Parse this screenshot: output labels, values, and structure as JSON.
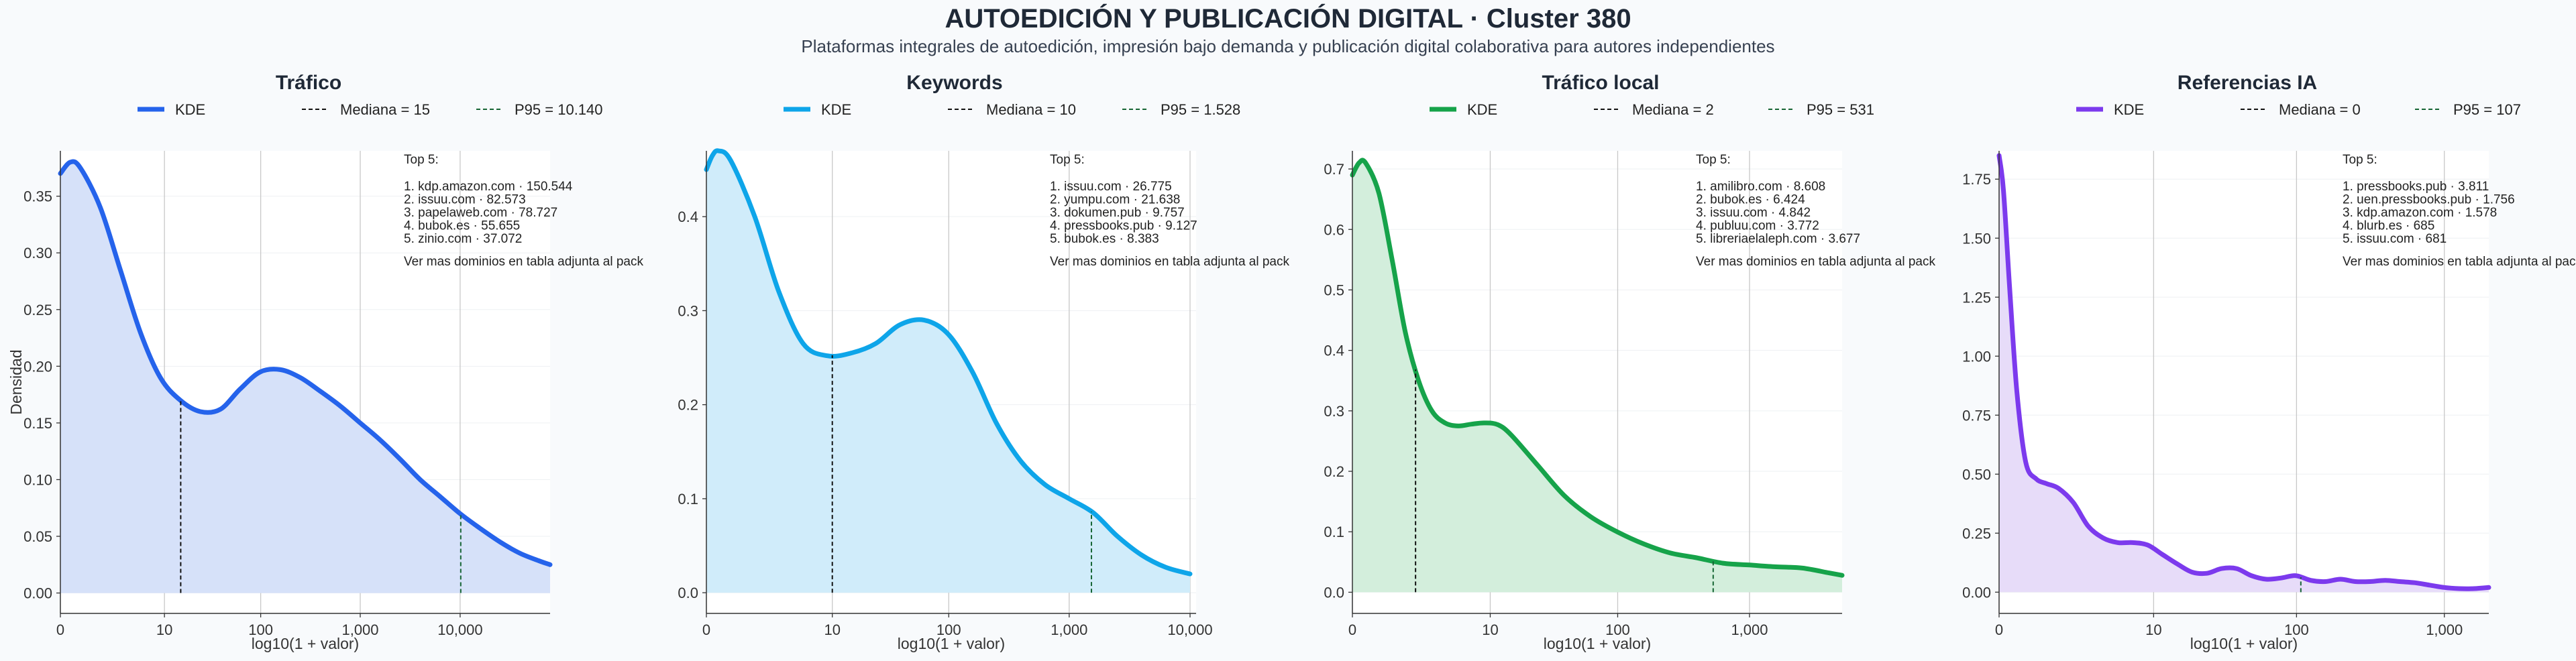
{
  "title": "AUTOEDICIÓN Y PUBLICACIÓN DIGITAL · Cluster 380",
  "subtitle": "Plataformas integrales de autoedición, impresión bajo demanda y publicación digital colaborativa para autores independientes",
  "chart_data": [
    {
      "type": "area",
      "panel_title": "Tráfico",
      "color": "#2563eb",
      "fill": "#d6e1f9",
      "legend": [
        "KDE",
        "Mediana = 15",
        "P95 = 10.140"
      ],
      "xlabel": "log10(1 + valor)",
      "ylabel": "Densidad",
      "x_scale": "log10(1+x)",
      "xlim": [
        0,
        4.9
      ],
      "ylim": [
        -0.018,
        0.39
      ],
      "x_ticks": [
        0,
        10,
        100,
        1000,
        10000
      ],
      "x_tick_labels": [
        "0",
        "10",
        "100",
        "1,000",
        "10,000"
      ],
      "y_ticks": [
        0,
        0.05,
        0.1,
        0.15,
        0.2,
        0.25,
        0.3,
        0.35
      ],
      "y_tick_labels": [
        "0.00",
        "0.05",
        "0.10",
        "0.15",
        "0.20",
        "0.25",
        "0.30",
        "0.35"
      ],
      "median": 15,
      "p95": 10140,
      "kde": {
        "x": [
          0,
          0.1,
          0.2,
          0.4,
          0.6,
          0.8,
          1.0,
          1.2,
          1.4,
          1.6,
          1.8,
          2.0,
          2.2,
          2.4,
          2.6,
          2.8,
          3.0,
          3.2,
          3.4,
          3.6,
          3.8,
          4.0,
          4.2,
          4.4,
          4.6,
          4.8,
          4.9
        ],
        "y": [
          0.37,
          0.38,
          0.375,
          0.34,
          0.285,
          0.23,
          0.19,
          0.17,
          0.16,
          0.162,
          0.18,
          0.195,
          0.197,
          0.19,
          0.178,
          0.165,
          0.15,
          0.135,
          0.118,
          0.1,
          0.085,
          0.07,
          0.057,
          0.045,
          0.035,
          0.028,
          0.025
        ]
      },
      "top5_title": "Top 5:",
      "top5": [
        "1. kdp.amazon.com · 150.544",
        "2. issuu.com · 82.573",
        "3. papelaweb.com · 78.727",
        "4. bubok.es · 55.655",
        "5. zinio.com · 37.072"
      ],
      "note": "Ver mas dominios en tabla adjunta al pack"
    },
    {
      "type": "area",
      "panel_title": "Keywords",
      "color": "#0ea5e9",
      "fill": "#d0ecfa",
      "legend": [
        "KDE",
        "Mediana = 10",
        "P95 = 1.528"
      ],
      "xlabel": "log10(1 + valor)",
      "ylabel": "",
      "x_scale": "log10(1+x)",
      "xlim": [
        0,
        4.05
      ],
      "ylim": [
        -0.022,
        0.47
      ],
      "x_ticks": [
        0,
        10,
        100,
        1000,
        10000
      ],
      "x_tick_labels": [
        "0",
        "10",
        "100",
        "1,000",
        "10,000"
      ],
      "y_ticks": [
        0,
        0.1,
        0.2,
        0.3,
        0.4
      ],
      "y_tick_labels": [
        "0.0",
        "0.1",
        "0.2",
        "0.3",
        "0.4"
      ],
      "median": 10,
      "p95": 1528,
      "kde": {
        "x": [
          0,
          0.05,
          0.1,
          0.2,
          0.4,
          0.6,
          0.8,
          1.0,
          1.2,
          1.4,
          1.6,
          1.8,
          2.0,
          2.2,
          2.4,
          2.6,
          2.8,
          3.0,
          3.2,
          3.4,
          3.6,
          3.8,
          4.0
        ],
        "y": [
          0.45,
          0.465,
          0.47,
          0.46,
          0.4,
          0.32,
          0.265,
          0.252,
          0.255,
          0.265,
          0.285,
          0.29,
          0.275,
          0.235,
          0.18,
          0.14,
          0.115,
          0.1,
          0.085,
          0.06,
          0.04,
          0.027,
          0.02
        ]
      },
      "top5_title": "Top 5:",
      "top5": [
        "1. issuu.com · 26.775",
        "2. yumpu.com · 21.638",
        "3. dokumen.pub · 9.757",
        "4. pressbooks.pub · 9.127",
        "5. bubok.es · 8.383"
      ],
      "note": "Ver mas dominios en tabla adjunta al pack"
    },
    {
      "type": "area",
      "panel_title": "Tráfico local",
      "color": "#16a34a",
      "fill": "#d3eedc",
      "legend": [
        "KDE",
        "Mediana = 2",
        "P95 = 531"
      ],
      "xlabel": "log10(1 + valor)",
      "ylabel": "",
      "x_scale": "log10(1+x)",
      "xlim": [
        0,
        3.7
      ],
      "ylim": [
        -0.035,
        0.73
      ],
      "x_ticks": [
        0,
        10,
        100,
        1000
      ],
      "x_tick_labels": [
        "0",
        "10",
        "100",
        "1,000"
      ],
      "y_ticks": [
        0,
        0.1,
        0.2,
        0.3,
        0.4,
        0.5,
        0.6,
        0.7
      ],
      "y_tick_labels": [
        "0.0",
        "0.1",
        "0.2",
        "0.3",
        "0.4",
        "0.5",
        "0.6",
        "0.7"
      ],
      "median": 2,
      "p95": 531,
      "kde": {
        "x": [
          0,
          0.05,
          0.1,
          0.2,
          0.3,
          0.4,
          0.5,
          0.6,
          0.7,
          0.8,
          0.9,
          1.0,
          1.1,
          1.2,
          1.4,
          1.6,
          1.8,
          2.0,
          2.2,
          2.4,
          2.6,
          2.8,
          3.0,
          3.2,
          3.4,
          3.6,
          3.7
        ],
        "y": [
          0.69,
          0.71,
          0.71,
          0.66,
          0.55,
          0.43,
          0.35,
          0.3,
          0.28,
          0.275,
          0.278,
          0.28,
          0.277,
          0.26,
          0.21,
          0.16,
          0.125,
          0.1,
          0.08,
          0.065,
          0.057,
          0.048,
          0.045,
          0.042,
          0.04,
          0.032,
          0.028
        ]
      },
      "top5_title": "Top 5:",
      "top5": [
        "1. amilibro.com · 8.608",
        "2. bubok.es · 6.424",
        "3. issuu.com · 4.842",
        "4. publuu.com · 3.772",
        "5. libreriaelaleph.com · 3.677"
      ],
      "note": "Ver mas dominios en tabla adjunta al pack"
    },
    {
      "type": "area",
      "panel_title": "Referencias IA",
      "color": "#7c3aed",
      "fill": "#e7dcf9",
      "legend": [
        "KDE",
        "Mediana = 0",
        "P95 = 107"
      ],
      "xlabel": "log10(1 + valor)",
      "ylabel": "",
      "x_scale": "log10(1+x)",
      "xlim": [
        0,
        3.3
      ],
      "ylim": [
        -0.09,
        1.87
      ],
      "x_ticks": [
        0,
        10,
        100,
        1000
      ],
      "x_tick_labels": [
        "0",
        "10",
        "100",
        "1,000"
      ],
      "y_ticks": [
        0,
        0.25,
        0.5,
        0.75,
        1.0,
        1.25,
        1.5,
        1.75
      ],
      "y_tick_labels": [
        "0.00",
        "0.25",
        "0.50",
        "0.75",
        "1.00",
        "1.25",
        "1.50",
        "1.75"
      ],
      "median": 0,
      "p95": 107,
      "kde": {
        "x": [
          0,
          0.03,
          0.07,
          0.12,
          0.18,
          0.25,
          0.32,
          0.4,
          0.5,
          0.6,
          0.7,
          0.8,
          0.9,
          1.0,
          1.1,
          1.2,
          1.3,
          1.4,
          1.5,
          1.6,
          1.7,
          1.8,
          1.9,
          2.0,
          2.1,
          2.2,
          2.3,
          2.4,
          2.5,
          2.6,
          2.7,
          2.8,
          2.9,
          3.0,
          3.1,
          3.2,
          3.3
        ],
        "y": [
          1.85,
          1.7,
          1.3,
          0.85,
          0.55,
          0.48,
          0.46,
          0.44,
          0.38,
          0.28,
          0.23,
          0.21,
          0.21,
          0.2,
          0.16,
          0.12,
          0.085,
          0.08,
          0.1,
          0.1,
          0.07,
          0.055,
          0.06,
          0.07,
          0.05,
          0.045,
          0.055,
          0.045,
          0.045,
          0.05,
          0.045,
          0.04,
          0.03,
          0.02,
          0.015,
          0.015,
          0.02
        ]
      },
      "top5_title": "Top 5:",
      "top5": [
        "1. pressbooks.pub · 3.811",
        "2. uen.pressbooks.pub · 1.756",
        "3. kdp.amazon.com · 1.578",
        "4. blurb.es · 685",
        "5. issuu.com · 681"
      ],
      "note": "Ver mas dominios en tabla adjunta al pack"
    }
  ]
}
